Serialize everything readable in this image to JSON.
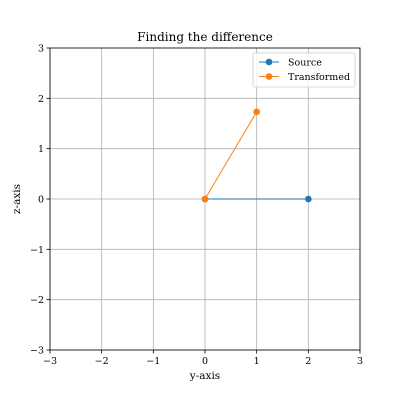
{
  "chart_data": {
    "type": "line",
    "title": "Finding the difference",
    "xlabel": "y-axis",
    "ylabel": "z-axis",
    "xlim": [
      -3,
      3
    ],
    "ylim": [
      -3,
      3
    ],
    "xticks": [
      -3,
      -2,
      -1,
      0,
      1,
      2,
      3
    ],
    "yticks": [
      -3,
      -2,
      -1,
      0,
      1,
      2,
      3
    ],
    "xtick_labels": [
      "−3",
      "−2",
      "−1",
      "0",
      "1",
      "2",
      "3"
    ],
    "ytick_labels": [
      "−3",
      "−2",
      "−1",
      "0",
      "1",
      "2",
      "3"
    ],
    "grid": true,
    "legend_position": "upper right",
    "series": [
      {
        "name": "Source",
        "color": "#1f77b4",
        "marker": "circle",
        "points": [
          [
            0,
            0
          ],
          [
            2,
            0
          ]
        ]
      },
      {
        "name": "Transformed",
        "color": "#ff7f0e",
        "marker": "circle",
        "points": [
          [
            0,
            0
          ],
          [
            1,
            1.732
          ]
        ]
      }
    ]
  }
}
